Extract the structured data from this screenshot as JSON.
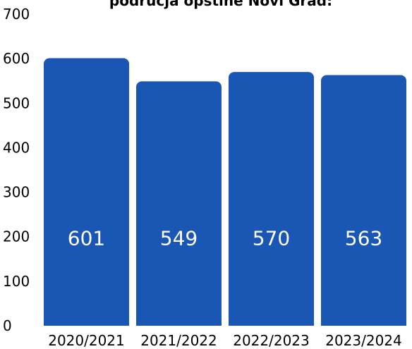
{
  "chart_data": {
    "type": "bar",
    "title": "podrucja opstine Novi Grad:",
    "categories": [
      "2020/2021",
      "2021/2022",
      "2022/2023",
      "2023/2024"
    ],
    "values": [
      601,
      549,
      570,
      563
    ],
    "data_labels": [
      "601",
      "549",
      "570",
      "563"
    ],
    "xlabel": "",
    "ylabel": "",
    "ylim": [
      0,
      700
    ],
    "yticks": [
      0,
      100,
      200,
      300,
      400,
      500,
      600,
      700
    ],
    "grid": false,
    "legend": "none",
    "bar_color": "#1a56b4",
    "label_color": "#ffffff"
  }
}
